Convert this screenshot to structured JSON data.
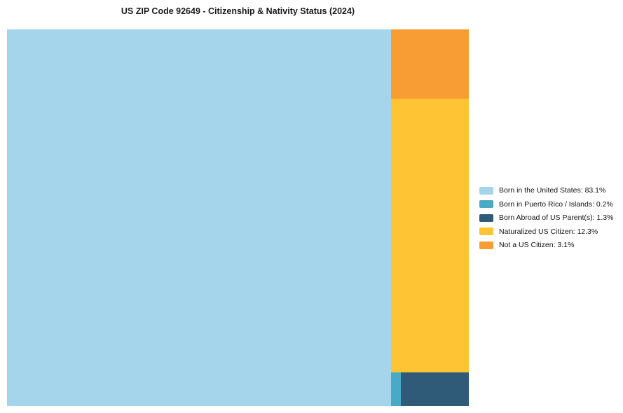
{
  "page": {
    "background": "#FFFFFF"
  },
  "chart_data": {
    "type": "treemap",
    "title": "US ZIP Code 92649 - Citizenship & Nativity Status (2024)",
    "legend_position": "right-center",
    "segments": [
      {
        "label": "Born in the United States",
        "value_pct": 83.1,
        "color": "#A5D5EA",
        "legend_text": "Born in the United States: 83.1%"
      },
      {
        "label": "Born in Puerto Rico / Islands",
        "value_pct": 0.2,
        "color": "#4AA9C4",
        "legend_text": "Born in Puerto Rico / Islands: 0.2%"
      },
      {
        "label": "Born Abroad of US Parent(s)",
        "value_pct": 1.3,
        "color": "#2F5B78",
        "legend_text": "Born Abroad of US Parent(s): 1.3%"
      },
      {
        "label": "Naturalized US Citizen",
        "value_pct": 12.3,
        "color": "#FEC433",
        "legend_text": "Naturalized US Citizen: 12.3%"
      },
      {
        "label": "Not a US Citizen",
        "value_pct": 3.1,
        "color": "#F89C34",
        "legend_text": "Not a US Citizen: 3.1%"
      }
    ]
  }
}
